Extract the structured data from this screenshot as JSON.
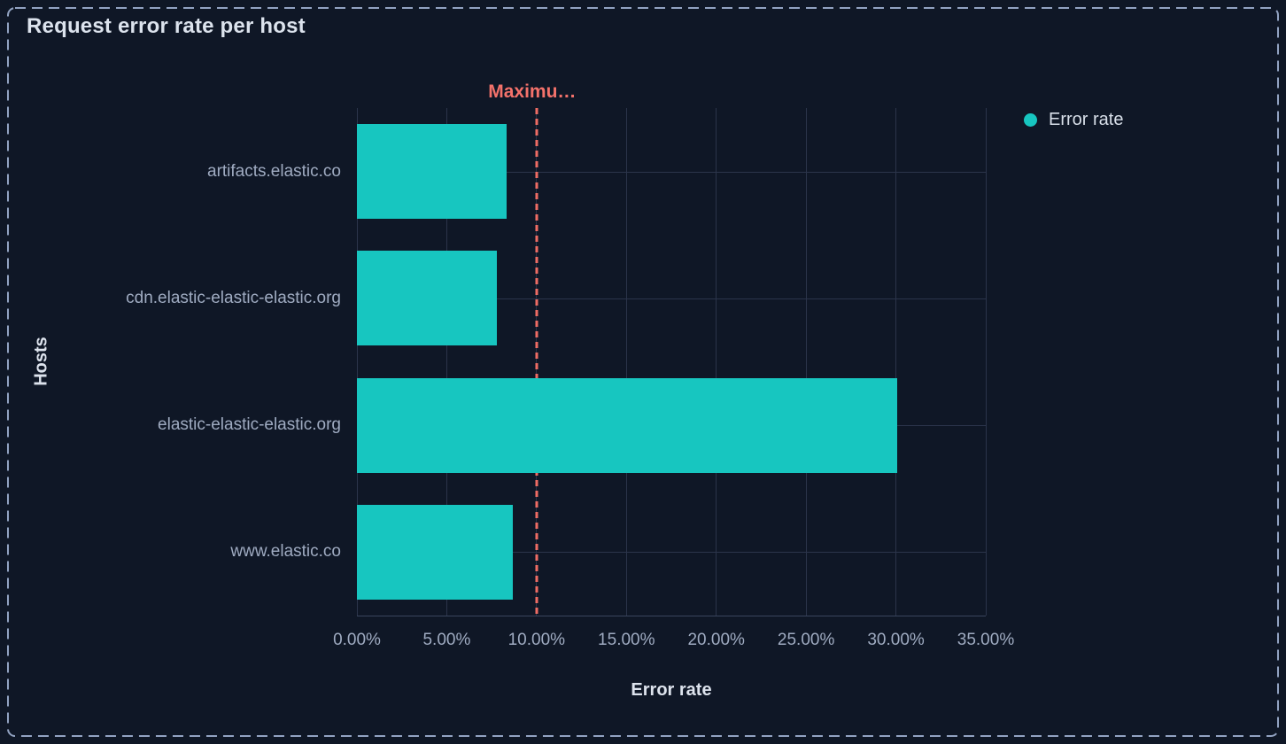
{
  "panel": {
    "title": "Request error rate per host"
  },
  "chart_data": {
    "type": "bar",
    "orientation": "horizontal",
    "title": "Request error rate per host",
    "categories": [
      "artifacts.elastic.co",
      "cdn.elastic-elastic-elastic.org",
      "elastic-elastic-elastic.org",
      "www.elastic.co"
    ],
    "series": [
      {
        "name": "Error rate",
        "color": "#17c6c0",
        "values": [
          8.33,
          7.81,
          30.05,
          8.68
        ],
        "unit": "%"
      }
    ],
    "xlabel": "Error rate",
    "ylabel": "Hosts",
    "xlim": [
      0,
      35
    ],
    "x_ticks": [
      {
        "value": 0,
        "label": "0.00%"
      },
      {
        "value": 5,
        "label": "5.00%"
      },
      {
        "value": 10,
        "label": "10.00%"
      },
      {
        "value": 15,
        "label": "15.00%"
      },
      {
        "value": 20,
        "label": "20.00%"
      },
      {
        "value": 25,
        "label": "25.00%"
      },
      {
        "value": 30,
        "label": "30.00%"
      },
      {
        "value": 35,
        "label": "35.00%"
      }
    ],
    "grid": true,
    "legend": {
      "position": "right",
      "items": [
        {
          "label": "Error rate",
          "color": "#17c6c0"
        }
      ]
    },
    "annotations": [
      {
        "type": "vline",
        "label": "Maximu…",
        "value": 10,
        "line_style": "dashed",
        "color": "#ef6c64"
      }
    ]
  },
  "colors": {
    "background": "#0f1726",
    "panel_border": "#92a3c2",
    "bar": "#17c6c0",
    "threshold_line": "#ef6c64",
    "threshold_text": "#f4726b",
    "gridline": "#2b344a",
    "axis_line": "#39455e",
    "title_text": "#dce3ed",
    "tick_text": "#9fabc1",
    "axis_title_text": "#dde3ed",
    "legend_text": "#d8dfe9"
  }
}
